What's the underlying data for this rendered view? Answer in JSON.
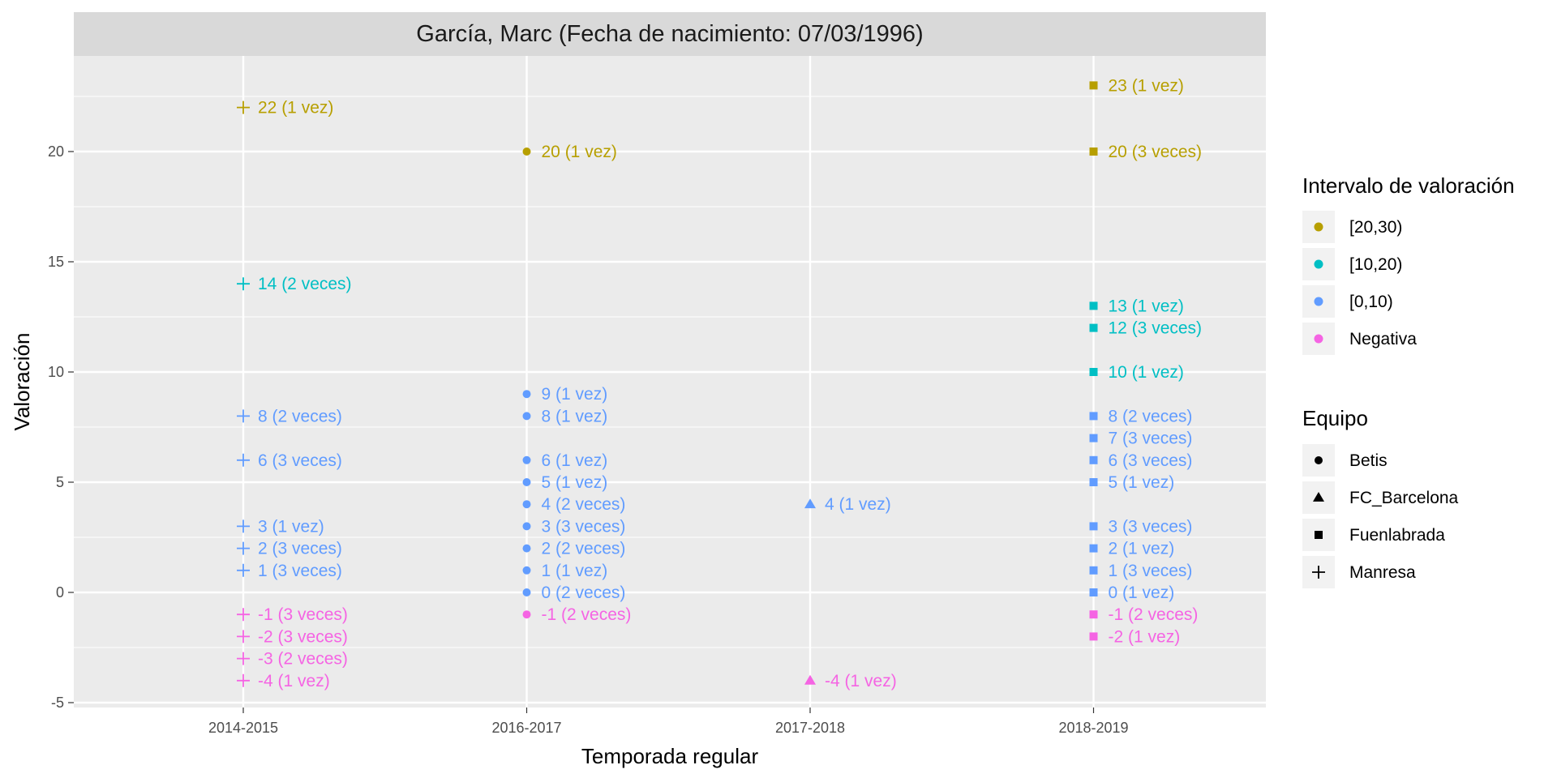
{
  "chart_data": {
    "type": "scatter",
    "title": "García, Marc (Fecha de nacimiento: 07/03/1996)",
    "xlabel": "Temporada regular",
    "ylabel": "Valoración",
    "categories": [
      "2014-2015",
      "2016-2017",
      "2017-2018",
      "2018-2019"
    ],
    "ylim": [
      -5,
      24
    ],
    "yticks": [
      -5,
      0,
      5,
      10,
      15,
      20
    ],
    "grid": true,
    "legend_position": "right",
    "interval_legend": {
      "title": "Intervalo de valoración",
      "items": [
        {
          "label": "[20,30)",
          "color": "#B79F00"
        },
        {
          "label": "[10,20)",
          "color": "#00BFC4"
        },
        {
          "label": "[0,10)",
          "color": "#619CFF"
        },
        {
          "label": "Negativa",
          "color": "#F564E3"
        }
      ]
    },
    "team_legend": {
      "title": "Equipo",
      "items": [
        {
          "label": "Betis",
          "shape": "circle"
        },
        {
          "label": "FC_Barcelona",
          "shape": "triangle"
        },
        {
          "label": "Fuenlabrada",
          "shape": "square"
        },
        {
          "label": "Manresa",
          "shape": "plus"
        }
      ]
    },
    "points": [
      {
        "season": "2014-2015",
        "y": 22,
        "label": "22 (1 vez)",
        "interval": "[20,30)",
        "team": "Manresa"
      },
      {
        "season": "2014-2015",
        "y": 14,
        "label": "14 (2 veces)",
        "interval": "[10,20)",
        "team": "Manresa"
      },
      {
        "season": "2014-2015",
        "y": 8,
        "label": "8 (2 veces)",
        "interval": "[0,10)",
        "team": "Manresa"
      },
      {
        "season": "2014-2015",
        "y": 6,
        "label": "6 (3 veces)",
        "interval": "[0,10)",
        "team": "Manresa"
      },
      {
        "season": "2014-2015",
        "y": 3,
        "label": "3 (1 vez)",
        "interval": "[0,10)",
        "team": "Manresa"
      },
      {
        "season": "2014-2015",
        "y": 2,
        "label": "2 (3 veces)",
        "interval": "[0,10)",
        "team": "Manresa"
      },
      {
        "season": "2014-2015",
        "y": 1,
        "label": "1 (3 veces)",
        "interval": "[0,10)",
        "team": "Manresa"
      },
      {
        "season": "2014-2015",
        "y": -1,
        "label": "-1 (3 veces)",
        "interval": "Negativa",
        "team": "Manresa"
      },
      {
        "season": "2014-2015",
        "y": -2,
        "label": "-2 (3 veces)",
        "interval": "Negativa",
        "team": "Manresa"
      },
      {
        "season": "2014-2015",
        "y": -3,
        "label": "-3 (2 veces)",
        "interval": "Negativa",
        "team": "Manresa"
      },
      {
        "season": "2014-2015",
        "y": -4,
        "label": "-4 (1 vez)",
        "interval": "Negativa",
        "team": "Manresa"
      },
      {
        "season": "2016-2017",
        "y": 20,
        "label": "20 (1 vez)",
        "interval": "[20,30)",
        "team": "Betis"
      },
      {
        "season": "2016-2017",
        "y": 9,
        "label": "9 (1 vez)",
        "interval": "[0,10)",
        "team": "Betis"
      },
      {
        "season": "2016-2017",
        "y": 8,
        "label": "8 (1 vez)",
        "interval": "[0,10)",
        "team": "Betis"
      },
      {
        "season": "2016-2017",
        "y": 6,
        "label": "6 (1 vez)",
        "interval": "[0,10)",
        "team": "Betis"
      },
      {
        "season": "2016-2017",
        "y": 5,
        "label": "5 (1 vez)",
        "interval": "[0,10)",
        "team": "Betis"
      },
      {
        "season": "2016-2017",
        "y": 4,
        "label": "4 (2 veces)",
        "interval": "[0,10)",
        "team": "Betis"
      },
      {
        "season": "2016-2017",
        "y": 3,
        "label": "3 (3 veces)",
        "interval": "[0,10)",
        "team": "Betis"
      },
      {
        "season": "2016-2017",
        "y": 2,
        "label": "2 (2 veces)",
        "interval": "[0,10)",
        "team": "Betis"
      },
      {
        "season": "2016-2017",
        "y": 1,
        "label": "1 (1 vez)",
        "interval": "[0,10)",
        "team": "Betis"
      },
      {
        "season": "2016-2017",
        "y": 0,
        "label": "0 (2 veces)",
        "interval": "[0,10)",
        "team": "Betis"
      },
      {
        "season": "2016-2017",
        "y": -1,
        "label": "-1 (2 veces)",
        "interval": "Negativa",
        "team": "Betis"
      },
      {
        "season": "2017-2018",
        "y": 4,
        "label": "4 (1 vez)",
        "interval": "[0,10)",
        "team": "FC_Barcelona"
      },
      {
        "season": "2017-2018",
        "y": -4,
        "label": "-4 (1 vez)",
        "interval": "Negativa",
        "team": "FC_Barcelona"
      },
      {
        "season": "2018-2019",
        "y": 23,
        "label": "23 (1 vez)",
        "interval": "[20,30)",
        "team": "Fuenlabrada"
      },
      {
        "season": "2018-2019",
        "y": 20,
        "label": "20 (3 veces)",
        "interval": "[20,30)",
        "team": "Fuenlabrada"
      },
      {
        "season": "2018-2019",
        "y": 13,
        "label": "13 (1 vez)",
        "interval": "[10,20)",
        "team": "Fuenlabrada"
      },
      {
        "season": "2018-2019",
        "y": 12,
        "label": "12 (3 veces)",
        "interval": "[10,20)",
        "team": "Fuenlabrada"
      },
      {
        "season": "2018-2019",
        "y": 10,
        "label": "10 (1 vez)",
        "interval": "[10,20)",
        "team": "Fuenlabrada"
      },
      {
        "season": "2018-2019",
        "y": 8,
        "label": "8 (2 veces)",
        "interval": "[0,10)",
        "team": "Fuenlabrada"
      },
      {
        "season": "2018-2019",
        "y": 7,
        "label": "7 (3 veces)",
        "interval": "[0,10)",
        "team": "Fuenlabrada"
      },
      {
        "season": "2018-2019",
        "y": 6,
        "label": "6 (3 veces)",
        "interval": "[0,10)",
        "team": "Fuenlabrada"
      },
      {
        "season": "2018-2019",
        "y": 5,
        "label": "5 (1 vez)",
        "interval": "[0,10)",
        "team": "Fuenlabrada"
      },
      {
        "season": "2018-2019",
        "y": 3,
        "label": "3 (3 veces)",
        "interval": "[0,10)",
        "team": "Fuenlabrada"
      },
      {
        "season": "2018-2019",
        "y": 2,
        "label": "2 (1 vez)",
        "interval": "[0,10)",
        "team": "Fuenlabrada"
      },
      {
        "season": "2018-2019",
        "y": 1,
        "label": "1 (3 veces)",
        "interval": "[0,10)",
        "team": "Fuenlabrada"
      },
      {
        "season": "2018-2019",
        "y": 0,
        "label": "0 (1 vez)",
        "interval": "[0,10)",
        "team": "Fuenlabrada"
      },
      {
        "season": "2018-2019",
        "y": -1,
        "label": "-1 (2 veces)",
        "interval": "Negativa",
        "team": "Fuenlabrada"
      },
      {
        "season": "2018-2019",
        "y": -2,
        "label": "-2 (1 vez)",
        "interval": "Negativa",
        "team": "Fuenlabrada"
      }
    ]
  }
}
